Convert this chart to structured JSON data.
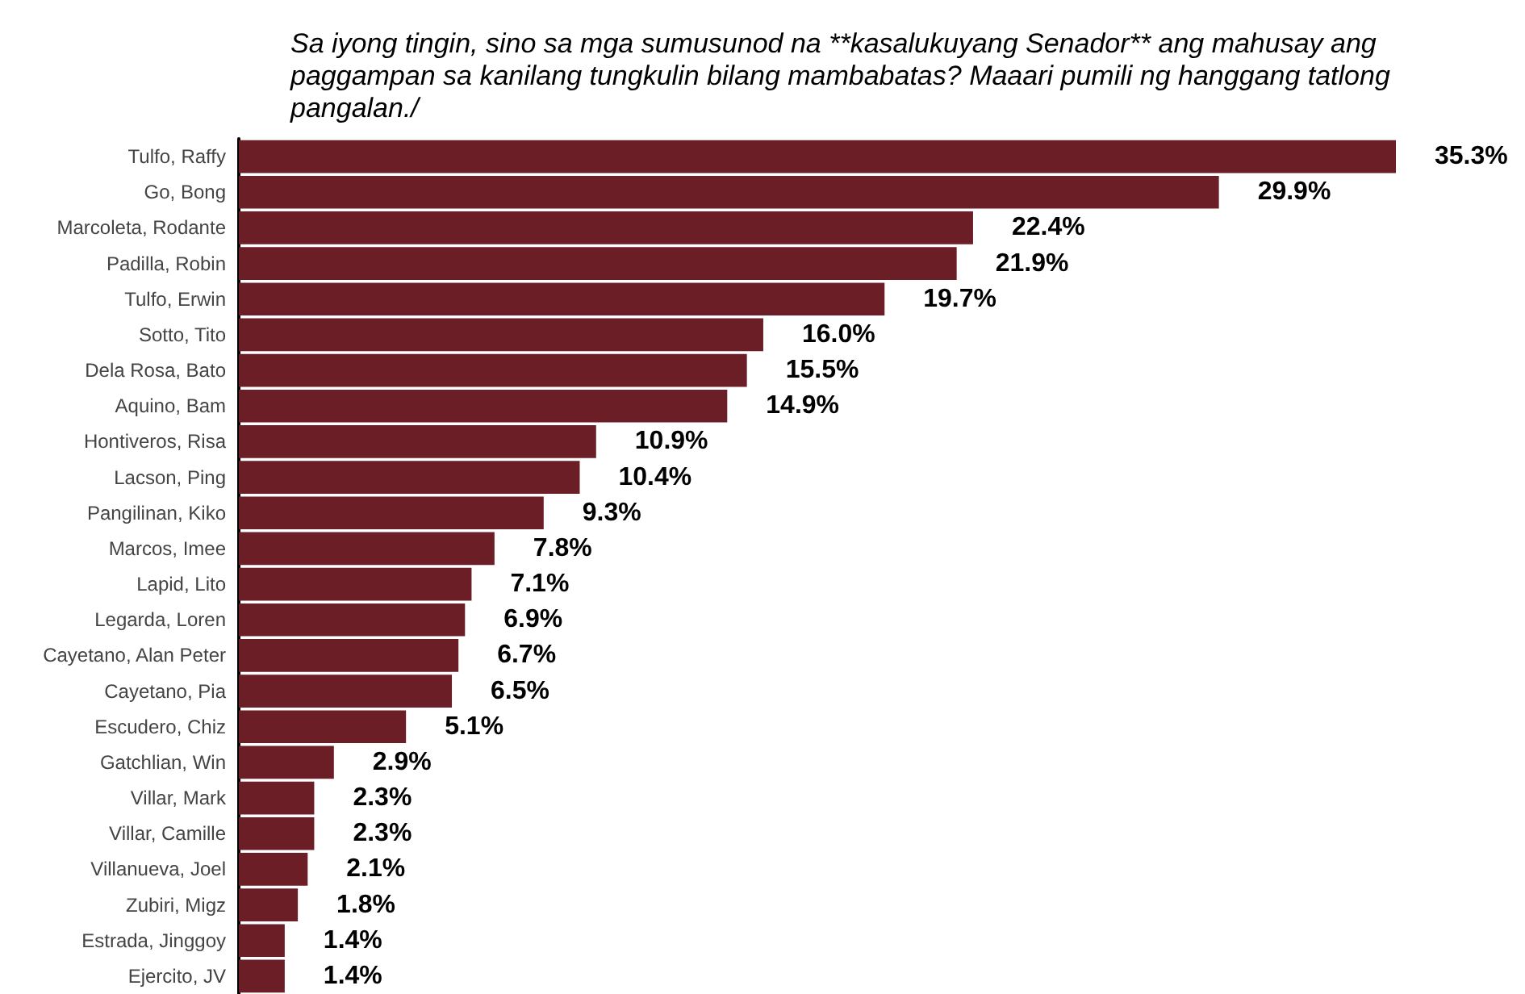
{
  "chart_data": {
    "type": "bar",
    "orientation": "horizontal",
    "title": "Sa iyong tingin, sino sa mga sumusunod na **kasalukuyang Senador** ang mahusay ang\npaggampan sa kanilang tungkulin bilang mambabatas? Maaari pumili ng hanggang tatlong\npangalan./",
    "categories": [
      "Tulfo, Raffy",
      "Go, Bong",
      "Marcoleta, Rodante",
      "Padilla, Robin",
      "Tulfo, Erwin",
      "Sotto, Tito",
      "Dela Rosa, Bato",
      "Aquino, Bam",
      "Hontiveros, Risa",
      "Lacson, Ping",
      "Pangilinan, Kiko",
      "Marcos, Imee",
      "Lapid, Lito",
      "Legarda, Loren",
      "Cayetano, Alan Peter",
      "Cayetano, Pia",
      "Escudero, Chiz",
      "Gatchlian, Win",
      "Villar, Mark",
      "Villar, Camille",
      "Villanueva, Joel",
      "Zubiri, Migz",
      "Estrada, Jinggoy",
      "Ejercito, JV"
    ],
    "values": [
      35.3,
      29.9,
      22.4,
      21.9,
      19.7,
      16.0,
      15.5,
      14.9,
      10.9,
      10.4,
      9.3,
      7.8,
      7.1,
      6.9,
      6.7,
      6.5,
      5.1,
      2.9,
      2.3,
      2.3,
      2.1,
      1.8,
      1.4,
      1.4
    ],
    "value_labels": [
      "35.3%",
      "29.9%",
      "22.4%",
      "21.9%",
      "19.7%",
      "16.0%",
      "15.5%",
      "14.9%",
      "10.9%",
      "10.4%",
      "9.3%",
      "7.8%",
      "7.1%",
      "6.9%",
      "6.7%",
      "6.5%",
      "5.1%",
      "2.9%",
      "2.3%",
      "2.3%",
      "2.1%",
      "1.8%",
      "1.4%",
      "1.4%"
    ],
    "color": "#6b1e26",
    "tick_labels": "y"
  }
}
